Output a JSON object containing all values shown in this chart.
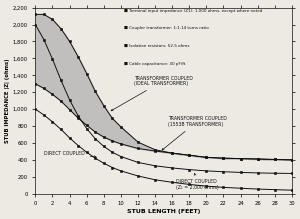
{
  "xlabel": "STUB LENGTH (FEET)",
  "ylabel": "STUB IMPEDANCE |Z| (ohms)",
  "xlim": [
    0,
    30
  ],
  "ylim": [
    0,
    2200
  ],
  "yticks": [
    0,
    200,
    400,
    600,
    800,
    1000,
    1200,
    1400,
    1600,
    1800,
    2000,
    2200
  ],
  "xticks": [
    0,
    2,
    4,
    6,
    8,
    10,
    12,
    14,
    16,
    18,
    20,
    22,
    24,
    26,
    28,
    30
  ],
  "legend_notes": [
    "Terminal input impedance (Z1): 1,000 ohms, except where noted",
    "Coupler transformer: 1:1.14 turns ratio",
    "Isolation resistors: 52.5 ohms",
    "Cable capacitance: 30 pF/ft"
  ],
  "transformer_ideal_x": [
    0,
    1,
    2,
    3,
    4,
    5,
    6,
    7,
    8,
    9,
    10,
    12,
    14,
    16,
    18,
    20,
    22,
    24,
    26,
    28,
    30
  ],
  "transformer_ideal_y": [
    2120,
    2120,
    2060,
    1950,
    1800,
    1620,
    1420,
    1210,
    1040,
    890,
    790,
    610,
    520,
    480,
    455,
    430,
    420,
    415,
    410,
    405,
    400
  ],
  "transformer_1553b_x": [
    0,
    1,
    2,
    3,
    4,
    5,
    6,
    7,
    8,
    9,
    10,
    12,
    14,
    16,
    18,
    20,
    22,
    24,
    26,
    28,
    30
  ],
  "transformer_1553b_y": [
    1300,
    1245,
    1175,
    1095,
    995,
    895,
    810,
    730,
    670,
    625,
    590,
    535,
    505,
    480,
    455,
    430,
    420,
    415,
    410,
    405,
    400
  ],
  "direct_coupled_x": [
    0,
    1,
    2,
    3,
    4,
    5,
    6,
    7,
    8,
    9,
    10,
    12,
    14,
    16,
    18,
    20,
    22,
    24,
    26,
    28,
    30
  ],
  "direct_coupled_y": [
    1000,
    930,
    850,
    760,
    660,
    570,
    490,
    420,
    360,
    310,
    270,
    210,
    165,
    135,
    110,
    90,
    75,
    65,
    55,
    48,
    42
  ],
  "direct_coupled_2k_x": [
    0,
    1,
    2,
    3,
    4,
    5,
    6,
    7,
    8,
    9,
    10,
    12,
    14,
    16,
    18,
    20,
    22,
    24,
    26,
    28,
    30
  ],
  "direct_coupled_2k_y": [
    2000,
    1820,
    1590,
    1340,
    1110,
    920,
    770,
    650,
    560,
    490,
    440,
    370,
    330,
    305,
    285,
    270,
    260,
    252,
    246,
    242,
    240
  ],
  "bg_color": "#ede9e3",
  "line_color": "#111111",
  "shade_color": "#c0bfbd"
}
